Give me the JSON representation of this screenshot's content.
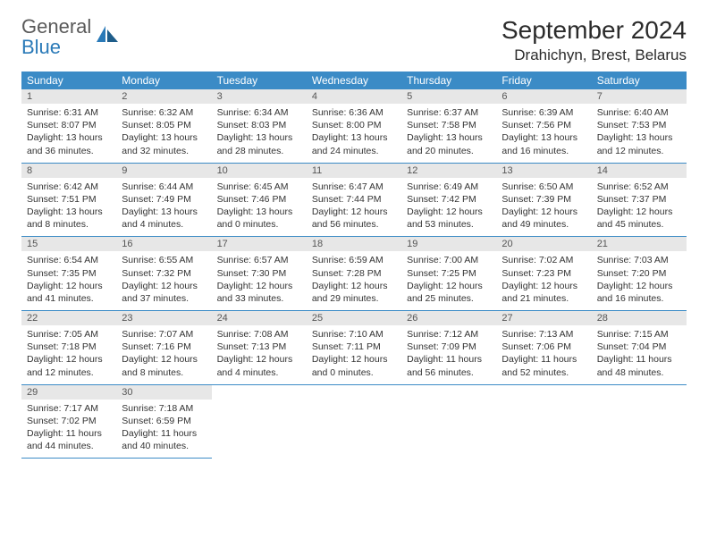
{
  "logo": {
    "word1": "General",
    "word2": "Blue"
  },
  "title": "September 2024",
  "location": "Drahichyn, Brest, Belarus",
  "header_bg": "#3b8bc6",
  "daynum_bg": "#e7e7e7",
  "row_border": "#3b8bc6",
  "weekdays": [
    "Sunday",
    "Monday",
    "Tuesday",
    "Wednesday",
    "Thursday",
    "Friday",
    "Saturday"
  ],
  "days": [
    {
      "n": "1",
      "sunrise": "Sunrise: 6:31 AM",
      "sunset": "Sunset: 8:07 PM",
      "day": "Daylight: 13 hours and 36 minutes."
    },
    {
      "n": "2",
      "sunrise": "Sunrise: 6:32 AM",
      "sunset": "Sunset: 8:05 PM",
      "day": "Daylight: 13 hours and 32 minutes."
    },
    {
      "n": "3",
      "sunrise": "Sunrise: 6:34 AM",
      "sunset": "Sunset: 8:03 PM",
      "day": "Daylight: 13 hours and 28 minutes."
    },
    {
      "n": "4",
      "sunrise": "Sunrise: 6:36 AM",
      "sunset": "Sunset: 8:00 PM",
      "day": "Daylight: 13 hours and 24 minutes."
    },
    {
      "n": "5",
      "sunrise": "Sunrise: 6:37 AM",
      "sunset": "Sunset: 7:58 PM",
      "day": "Daylight: 13 hours and 20 minutes."
    },
    {
      "n": "6",
      "sunrise": "Sunrise: 6:39 AM",
      "sunset": "Sunset: 7:56 PM",
      "day": "Daylight: 13 hours and 16 minutes."
    },
    {
      "n": "7",
      "sunrise": "Sunrise: 6:40 AM",
      "sunset": "Sunset: 7:53 PM",
      "day": "Daylight: 13 hours and 12 minutes."
    },
    {
      "n": "8",
      "sunrise": "Sunrise: 6:42 AM",
      "sunset": "Sunset: 7:51 PM",
      "day": "Daylight: 13 hours and 8 minutes."
    },
    {
      "n": "9",
      "sunrise": "Sunrise: 6:44 AM",
      "sunset": "Sunset: 7:49 PM",
      "day": "Daylight: 13 hours and 4 minutes."
    },
    {
      "n": "10",
      "sunrise": "Sunrise: 6:45 AM",
      "sunset": "Sunset: 7:46 PM",
      "day": "Daylight: 13 hours and 0 minutes."
    },
    {
      "n": "11",
      "sunrise": "Sunrise: 6:47 AM",
      "sunset": "Sunset: 7:44 PM",
      "day": "Daylight: 12 hours and 56 minutes."
    },
    {
      "n": "12",
      "sunrise": "Sunrise: 6:49 AM",
      "sunset": "Sunset: 7:42 PM",
      "day": "Daylight: 12 hours and 53 minutes."
    },
    {
      "n": "13",
      "sunrise": "Sunrise: 6:50 AM",
      "sunset": "Sunset: 7:39 PM",
      "day": "Daylight: 12 hours and 49 minutes."
    },
    {
      "n": "14",
      "sunrise": "Sunrise: 6:52 AM",
      "sunset": "Sunset: 7:37 PM",
      "day": "Daylight: 12 hours and 45 minutes."
    },
    {
      "n": "15",
      "sunrise": "Sunrise: 6:54 AM",
      "sunset": "Sunset: 7:35 PM",
      "day": "Daylight: 12 hours and 41 minutes."
    },
    {
      "n": "16",
      "sunrise": "Sunrise: 6:55 AM",
      "sunset": "Sunset: 7:32 PM",
      "day": "Daylight: 12 hours and 37 minutes."
    },
    {
      "n": "17",
      "sunrise": "Sunrise: 6:57 AM",
      "sunset": "Sunset: 7:30 PM",
      "day": "Daylight: 12 hours and 33 minutes."
    },
    {
      "n": "18",
      "sunrise": "Sunrise: 6:59 AM",
      "sunset": "Sunset: 7:28 PM",
      "day": "Daylight: 12 hours and 29 minutes."
    },
    {
      "n": "19",
      "sunrise": "Sunrise: 7:00 AM",
      "sunset": "Sunset: 7:25 PM",
      "day": "Daylight: 12 hours and 25 minutes."
    },
    {
      "n": "20",
      "sunrise": "Sunrise: 7:02 AM",
      "sunset": "Sunset: 7:23 PM",
      "day": "Daylight: 12 hours and 21 minutes."
    },
    {
      "n": "21",
      "sunrise": "Sunrise: 7:03 AM",
      "sunset": "Sunset: 7:20 PM",
      "day": "Daylight: 12 hours and 16 minutes."
    },
    {
      "n": "22",
      "sunrise": "Sunrise: 7:05 AM",
      "sunset": "Sunset: 7:18 PM",
      "day": "Daylight: 12 hours and 12 minutes."
    },
    {
      "n": "23",
      "sunrise": "Sunrise: 7:07 AM",
      "sunset": "Sunset: 7:16 PM",
      "day": "Daylight: 12 hours and 8 minutes."
    },
    {
      "n": "24",
      "sunrise": "Sunrise: 7:08 AM",
      "sunset": "Sunset: 7:13 PM",
      "day": "Daylight: 12 hours and 4 minutes."
    },
    {
      "n": "25",
      "sunrise": "Sunrise: 7:10 AM",
      "sunset": "Sunset: 7:11 PM",
      "day": "Daylight: 12 hours and 0 minutes."
    },
    {
      "n": "26",
      "sunrise": "Sunrise: 7:12 AM",
      "sunset": "Sunset: 7:09 PM",
      "day": "Daylight: 11 hours and 56 minutes."
    },
    {
      "n": "27",
      "sunrise": "Sunrise: 7:13 AM",
      "sunset": "Sunset: 7:06 PM",
      "day": "Daylight: 11 hours and 52 minutes."
    },
    {
      "n": "28",
      "sunrise": "Sunrise: 7:15 AM",
      "sunset": "Sunset: 7:04 PM",
      "day": "Daylight: 11 hours and 48 minutes."
    },
    {
      "n": "29",
      "sunrise": "Sunrise: 7:17 AM",
      "sunset": "Sunset: 7:02 PM",
      "day": "Daylight: 11 hours and 44 minutes."
    },
    {
      "n": "30",
      "sunrise": "Sunrise: 7:18 AM",
      "sunset": "Sunset: 6:59 PM",
      "day": "Daylight: 11 hours and 40 minutes."
    }
  ]
}
